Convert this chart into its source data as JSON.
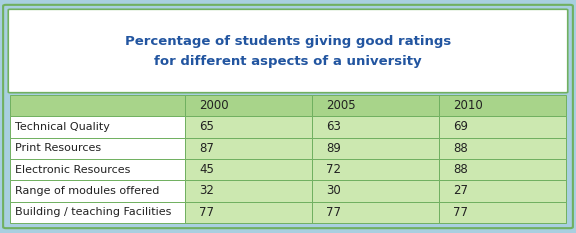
{
  "title_line1": "Percentage of students giving good ratings",
  "title_line2": "for different aspects of a university",
  "title_color": "#2255a0",
  "years": [
    "2000",
    "2005",
    "2010"
  ],
  "rows": [
    {
      "label": "Technical Quality",
      "values": [
        65,
        63,
        69
      ]
    },
    {
      "label": "Print Resources",
      "values": [
        87,
        89,
        88
      ]
    },
    {
      "label": "Electronic Resources",
      "values": [
        45,
        72,
        88
      ]
    },
    {
      "label": "Range of modules offered",
      "values": [
        32,
        30,
        27
      ]
    },
    {
      "label": "Building / teaching Facilities",
      "values": [
        77,
        77,
        77
      ]
    }
  ],
  "header_bg": "#a8d48a",
  "row_bg": "#cce8b0",
  "label_bg": "#ffffff",
  "title_box_bg": "#ffffff",
  "outer_bg": "#a8cfe0",
  "inner_border_color": "#70b060",
  "outer_border_color": "#88bcd8",
  "text_color": "#222222",
  "figsize": [
    5.76,
    2.33
  ],
  "dpi": 100
}
